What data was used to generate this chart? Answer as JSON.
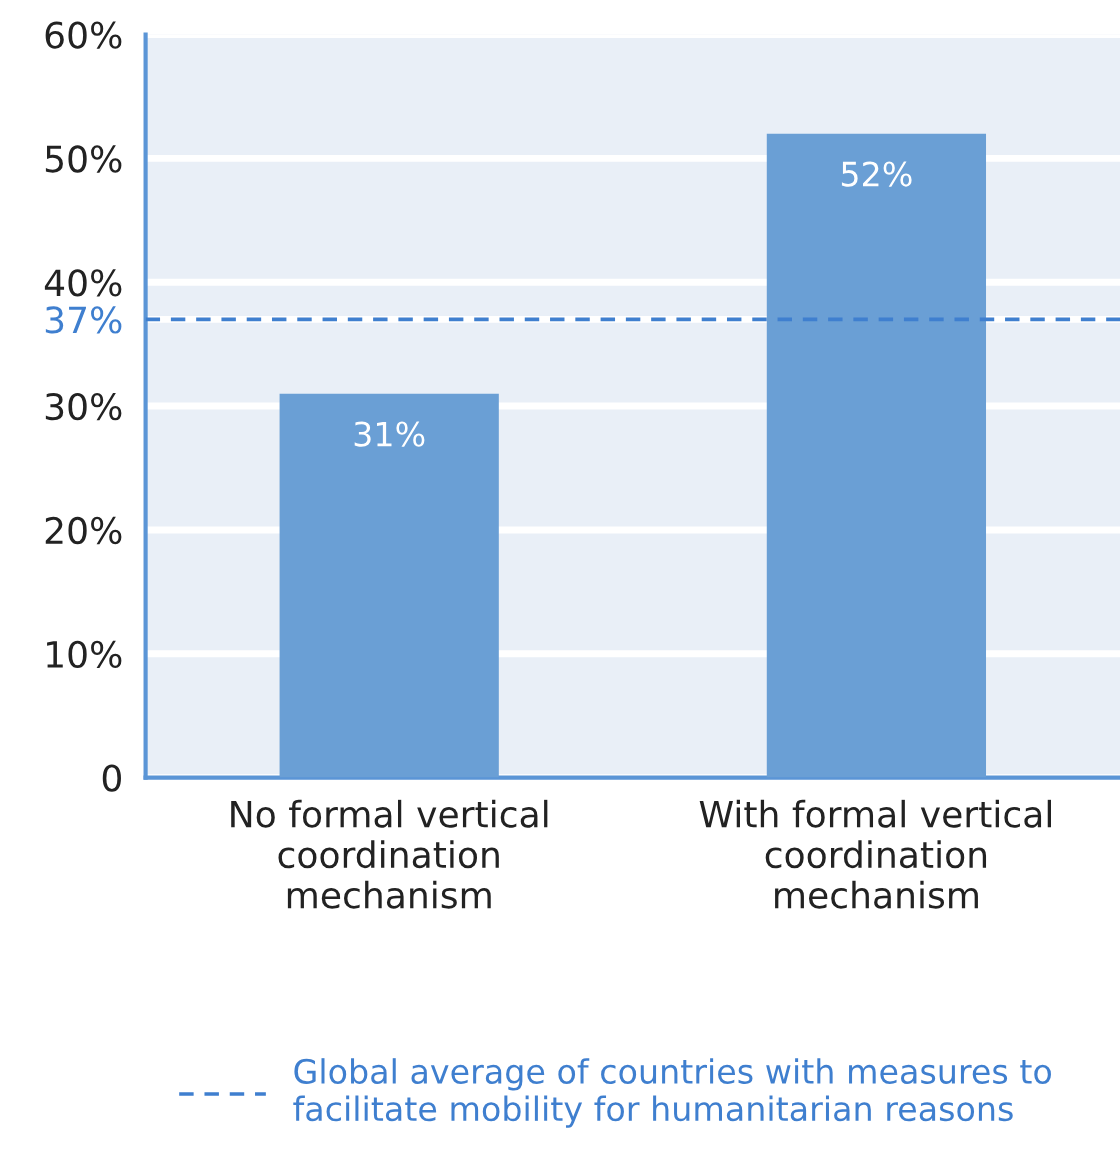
{
  "chart_data": {
    "type": "bar",
    "categories": [
      "No formal vertical\ncoordination\nmechanism",
      "With formal vertical\ncoordination\nmechanism"
    ],
    "values": [
      31,
      52
    ],
    "color": "#6a9fd5",
    "value_labels": [
      "31%",
      "52%"
    ],
    "ylim": [
      0,
      60
    ],
    "yticks": [
      {
        "value": 0,
        "label": "0"
      },
      {
        "value": 10,
        "label": "10%"
      },
      {
        "value": 20,
        "label": "20%"
      },
      {
        "value": 30,
        "label": "30%"
      },
      {
        "value": 37,
        "label": "37%"
      },
      {
        "value": 40,
        "label": "40%"
      },
      {
        "value": 50,
        "label": "50%"
      },
      {
        "value": 60,
        "label": "60%"
      }
    ],
    "grid": "y",
    "ref_lines": [
      {
        "axis": "y",
        "value": 37,
        "label": "Global average of countries with measures to\nfacilitate mobility for humanitarian reasons",
        "color": "#3f7fcf",
        "line_style": "dashed"
      }
    ],
    "legend": "bottom"
  }
}
